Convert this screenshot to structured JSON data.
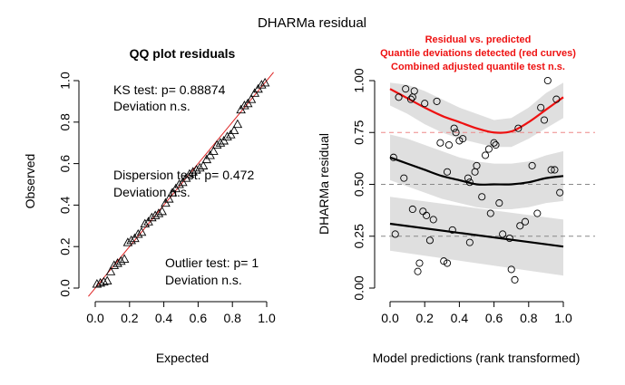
{
  "figure": {
    "title": "DHARMa residual"
  },
  "chart_data": [
    {
      "type": "scatter",
      "title": "QQ plot residuals",
      "xlabel": "Expected",
      "ylabel": "Observed",
      "xlim": [
        0,
        1
      ],
      "ylim": [
        0,
        1
      ],
      "xticks": [
        "0.0",
        "0.2",
        "0.4",
        "0.6",
        "0.8",
        "1.0"
      ],
      "yticks": [
        "0.0",
        "0.2",
        "0.4",
        "0.6",
        "0.8",
        "1.0"
      ],
      "grid": false,
      "reference_line": {
        "slope": 1,
        "intercept": 0,
        "color": "#dd2222"
      },
      "annotations": [
        {
          "line1": "KS test: p= 0.88874",
          "line2": "Deviation  n.s."
        },
        {
          "line1": "Dispersion test: p= 0.472",
          "line2": "Deviation  n.s."
        },
        {
          "line1": "Outlier test: p= 1",
          "line2": "Deviation  n.s."
        }
      ],
      "points": {
        "marker": "triangle",
        "n": 50,
        "expected": [
          0.01,
          0.03,
          0.05,
          0.07,
          0.09,
          0.11,
          0.13,
          0.15,
          0.17,
          0.19,
          0.21,
          0.23,
          0.25,
          0.27,
          0.29,
          0.31,
          0.33,
          0.35,
          0.37,
          0.39,
          0.41,
          0.43,
          0.45,
          0.47,
          0.49,
          0.51,
          0.53,
          0.55,
          0.57,
          0.59,
          0.61,
          0.63,
          0.65,
          0.67,
          0.69,
          0.71,
          0.73,
          0.75,
          0.77,
          0.79,
          0.81,
          0.83,
          0.85,
          0.87,
          0.89,
          0.91,
          0.93,
          0.95,
          0.97,
          0.99
        ],
        "observed": [
          0.02,
          0.025,
          0.03,
          0.035,
          0.08,
          0.11,
          0.12,
          0.13,
          0.14,
          0.22,
          0.23,
          0.24,
          0.26,
          0.27,
          0.31,
          0.32,
          0.34,
          0.35,
          0.36,
          0.37,
          0.41,
          0.43,
          0.46,
          0.48,
          0.5,
          0.51,
          0.53,
          0.55,
          0.56,
          0.57,
          0.58,
          0.59,
          0.62,
          0.64,
          0.66,
          0.69,
          0.7,
          0.71,
          0.73,
          0.74,
          0.76,
          0.79,
          0.86,
          0.88,
          0.89,
          0.91,
          0.94,
          0.96,
          0.98,
          0.99
        ]
      }
    },
    {
      "type": "scatter",
      "title": "",
      "xlabel": "Model predictions (rank transformed)",
      "ylabel": "DHARMa residual",
      "xlim": [
        0,
        1
      ],
      "ylim": [
        0,
        1
      ],
      "xticks": [
        "0.0",
        "0.2",
        "0.4",
        "0.6",
        "0.8",
        "1.0"
      ],
      "yticks": [
        "0.00",
        "0.25",
        "0.50",
        "0.75",
        "1.00"
      ],
      "grid": false,
      "messages": [
        "Residual vs. predicted",
        "Quantile deviations detected (red curves)",
        "Combined adjusted quantile test n.s."
      ],
      "message_color": "#ee1111",
      "reference_lines": [
        {
          "y": 0.25,
          "color": "#888888"
        },
        {
          "y": 0.5,
          "color": "#888888"
        },
        {
          "y": 0.75,
          "color": "#ee8888"
        }
      ],
      "quantile_curves": [
        {
          "quantile": 0.25,
          "color": "#000000",
          "x": [
            0.0,
            1.0
          ],
          "y": [
            0.31,
            0.2
          ],
          "band_upper": [
            0.44,
            0.33
          ],
          "band_lower": [
            0.18,
            0.06
          ]
        },
        {
          "quantile": 0.5,
          "color": "#000000",
          "x": [
            0.0,
            0.1,
            0.2,
            0.3,
            0.4,
            0.5,
            0.6,
            0.7,
            0.8,
            0.9,
            1.0
          ],
          "y": [
            0.63,
            0.6,
            0.57,
            0.54,
            0.52,
            0.5,
            0.5,
            0.5,
            0.51,
            0.53,
            0.54
          ],
          "band_upper": [
            0.74,
            0.72,
            0.69,
            0.66,
            0.63,
            0.61,
            0.6,
            0.6,
            0.61,
            0.64,
            0.66
          ],
          "band_lower": [
            0.52,
            0.49,
            0.46,
            0.43,
            0.41,
            0.39,
            0.38,
            0.38,
            0.39,
            0.41,
            0.42
          ]
        },
        {
          "quantile": 0.75,
          "color": "#ee1111",
          "x": [
            0.0,
            0.1,
            0.2,
            0.3,
            0.4,
            0.5,
            0.6,
            0.7,
            0.8,
            0.9,
            1.0
          ],
          "y": [
            0.96,
            0.915,
            0.87,
            0.83,
            0.8,
            0.77,
            0.75,
            0.755,
            0.8,
            0.86,
            0.92
          ],
          "band_upper": [
            0.99,
            0.98,
            0.95,
            0.91,
            0.87,
            0.84,
            0.81,
            0.82,
            0.87,
            0.94,
            0.99
          ],
          "band_lower": [
            0.88,
            0.84,
            0.79,
            0.75,
            0.72,
            0.7,
            0.68,
            0.68,
            0.72,
            0.77,
            0.82
          ]
        }
      ],
      "points": {
        "marker": "circle",
        "x": [
          0.02,
          0.03,
          0.05,
          0.08,
          0.09,
          0.12,
          0.13,
          0.13,
          0.14,
          0.16,
          0.17,
          0.19,
          0.2,
          0.21,
          0.23,
          0.25,
          0.27,
          0.29,
          0.31,
          0.33,
          0.33,
          0.34,
          0.36,
          0.37,
          0.38,
          0.4,
          0.42,
          0.45,
          0.46,
          0.46,
          0.49,
          0.5,
          0.53,
          0.55,
          0.57,
          0.58,
          0.6,
          0.61,
          0.63,
          0.65,
          0.69,
          0.7,
          0.72,
          0.74,
          0.75,
          0.78,
          0.82,
          0.85,
          0.87,
          0.89,
          0.91,
          0.93,
          0.95,
          0.96,
          0.98
        ],
        "y": [
          0.63,
          0.26,
          0.92,
          0.53,
          0.96,
          0.91,
          0.92,
          0.38,
          0.95,
          0.08,
          0.12,
          0.37,
          0.89,
          0.35,
          0.23,
          0.33,
          0.9,
          0.7,
          0.13,
          0.12,
          0.56,
          0.69,
          0.28,
          0.77,
          0.75,
          0.71,
          0.72,
          0.53,
          0.51,
          0.22,
          0.56,
          0.59,
          0.44,
          0.64,
          0.67,
          0.36,
          0.7,
          0.69,
          0.41,
          0.26,
          0.24,
          0.09,
          0.04,
          0.77,
          0.3,
          0.32,
          0.59,
          0.36,
          0.87,
          0.81,
          1.0,
          0.57,
          0.57,
          0.91,
          0.46
        ]
      }
    }
  ]
}
